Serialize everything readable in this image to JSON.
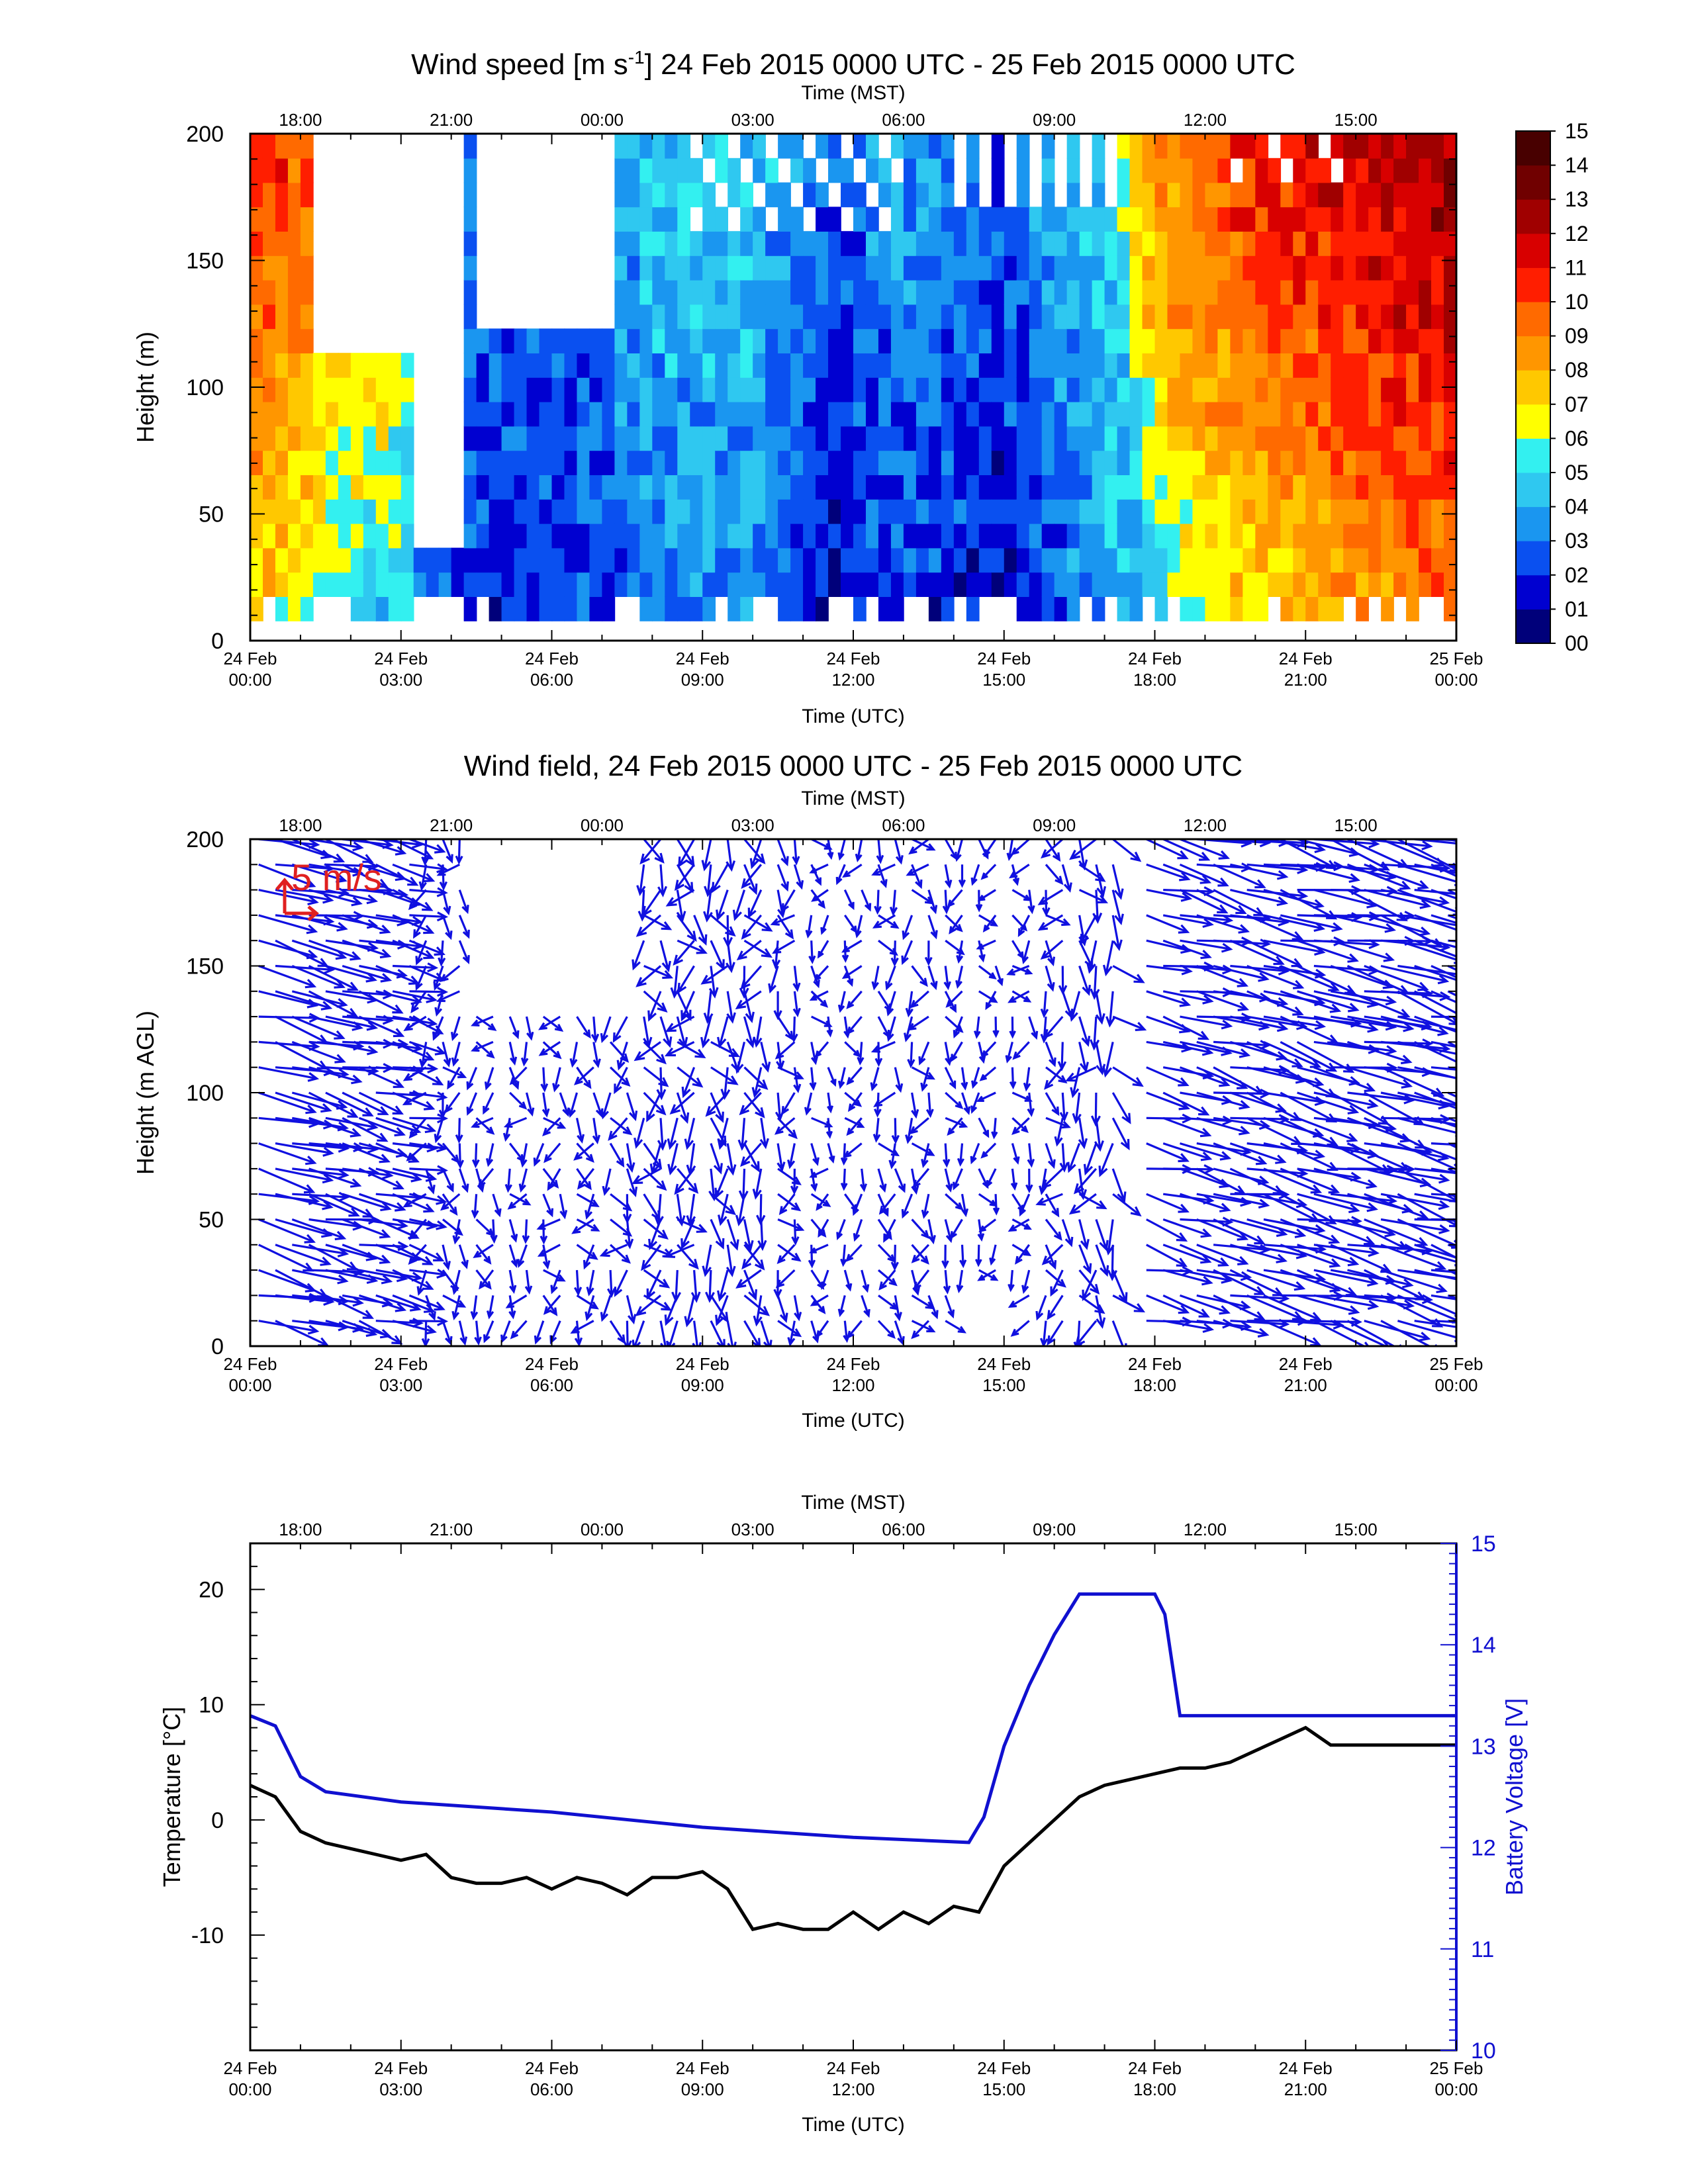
{
  "chart_data": [
    {
      "type": "heatmap",
      "title": "Wind speed [m s-1] 24 Feb 2015 0000 UTC - 25 Feb 2015 0000 UTC",
      "title_main": "Wind speed [m s",
      "title_sup": "-1",
      "title_rest": "] 24 Feb 2015 0000 UTC - 25 Feb 2015 0000 UTC",
      "xlabel": "Time (UTC)",
      "x2label": "Time (MST)",
      "ylabel": "Height (m)",
      "ylim": [
        0,
        200
      ],
      "yticks": [
        "0",
        "50",
        "100",
        "150",
        "200"
      ],
      "xticks_utc": [
        [
          "24 Feb",
          "00:00"
        ],
        [
          "24 Feb",
          "03:00"
        ],
        [
          "24 Feb",
          "06:00"
        ],
        [
          "24 Feb",
          "09:00"
        ],
        [
          "24 Feb",
          "12:00"
        ],
        [
          "24 Feb",
          "15:00"
        ],
        [
          "24 Feb",
          "18:00"
        ],
        [
          "24 Feb",
          "21:00"
        ],
        [
          "25 Feb",
          "00:00"
        ]
      ],
      "xticks_mst": [
        "18:00",
        "21:00",
        "00:00",
        "03:00",
        "06:00",
        "09:00",
        "12:00",
        "15:00"
      ],
      "colorbar_labels": [
        "00",
        "01",
        "02",
        "03",
        "04",
        "05",
        "06",
        "07",
        "08",
        "09",
        "10",
        "11",
        "12",
        "13",
        "14",
        "15"
      ],
      "colorbar_colors": [
        "#00007a",
        "#0000d0",
        "#0a50f0",
        "#1a96f0",
        "#2fc8f0",
        "#33f0f0",
        "#ffff00",
        "#ffc800",
        "#ff9600",
        "#ff6a00",
        "#ff1e00",
        "#d80000",
        "#a00000",
        "#700000",
        "#480000",
        "#200000"
      ],
      "speed_profile_utc_hours": [
        0,
        2,
        3,
        3.5,
        5,
        7,
        8,
        10,
        11.5,
        13,
        15,
        17.5,
        18,
        20,
        24
      ],
      "speed_profile_ms": [
        9,
        7,
        6,
        3,
        2.5,
        3,
        4,
        4,
        2,
        3,
        2,
        5,
        7,
        9,
        11
      ]
    },
    {
      "type": "scatter",
      "title": "Wind field, 24 Feb 2015 0000 UTC - 25 Feb 2015 0000 UTC",
      "xlabel": "Time (UTC)",
      "x2label": "Time (MST)",
      "ylabel": "Height (m AGL)",
      "ylim": [
        0,
        200
      ],
      "yticks": [
        "0",
        "50",
        "100",
        "150",
        "200"
      ],
      "reference_vector_label": "5 m/s",
      "reference_color": "#e02020",
      "vector_color": "#1010e0"
    },
    {
      "type": "line",
      "xlabel": "Time (UTC)",
      "x2label": "Time (MST)",
      "ylabel": "Temperature [°C]",
      "y2label": "Battery Voltage [V]",
      "ylim": [
        -20,
        24
      ],
      "y2lim": [
        10,
        15
      ],
      "yticks": [
        "20",
        "10",
        "0",
        "-10"
      ],
      "y2ticks": [
        "15",
        "14",
        "13",
        "12",
        "11",
        "10"
      ],
      "series": [
        {
          "name": "Temperature",
          "color": "#000000",
          "x_utc_hours": [
            0,
            0.5,
            1.0,
            1.5,
            2,
            2.5,
            3,
            3.5,
            4,
            4.5,
            5,
            5.5,
            6,
            6.5,
            7,
            7.5,
            8,
            8.5,
            9,
            9.5,
            10,
            10.5,
            11,
            11.5,
            12,
            12.5,
            13,
            13.5,
            14,
            14.5,
            15,
            15.5,
            16,
            16.5,
            17,
            17.5,
            18,
            18.5,
            19,
            19.5,
            20,
            20.5,
            21,
            21.5,
            22,
            22.5,
            23,
            23.5,
            24
          ],
          "values": [
            3,
            2,
            -1,
            -2,
            -2.5,
            -3,
            -3.5,
            -3,
            -5,
            -5.5,
            -5.5,
            -5,
            -6,
            -5,
            -5.5,
            -6.5,
            -5,
            -5,
            -4.5,
            -6,
            -9.5,
            -9,
            -9.5,
            -9.5,
            -8,
            -9.5,
            -8,
            -9,
            -7.5,
            -8,
            -4,
            -2,
            0,
            2,
            3,
            3.5,
            4,
            4.5,
            4.5,
            5,
            6,
            7,
            8,
            6.5,
            6.5,
            6.5,
            6.5,
            6.5,
            6.5
          ]
        },
        {
          "name": "Battery Voltage",
          "color": "#1010d0",
          "x_utc_hours": [
            0,
            0.5,
            1,
            1.5,
            3,
            6,
            9,
            12,
            14.3,
            14.6,
            15,
            15.5,
            16,
            16.5,
            17,
            18,
            18.2,
            18.5,
            20,
            22,
            24
          ],
          "values": [
            13.3,
            13.2,
            12.7,
            12.55,
            12.45,
            12.35,
            12.2,
            12.1,
            12.05,
            12.3,
            13,
            13.6,
            14.1,
            14.5,
            14.5,
            14.5,
            14.3,
            13.3,
            13.3,
            13.3,
            13.3
          ]
        }
      ]
    }
  ]
}
